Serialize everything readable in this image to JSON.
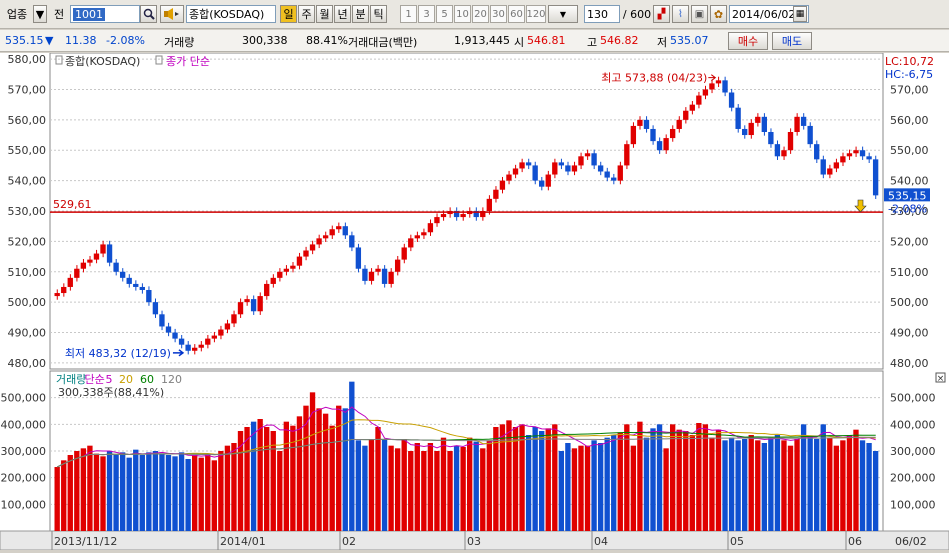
{
  "toolbar": {
    "market_label": "업종",
    "market_dropdown_icon": "chevron-down-icon",
    "prev_label": "전",
    "code_value": "1001",
    "search_icon": "search-icon",
    "speaker_icon": "speaker-icon",
    "index_name": "종합(KOSDAQ)",
    "periods": [
      "일",
      "주",
      "월",
      "년",
      "분",
      "틱"
    ],
    "minutes": [
      "1",
      "3",
      "5",
      "10",
      "20",
      "30",
      "60",
      "120"
    ],
    "count_value": "130",
    "count_total": "/ 600",
    "date_value": "2014/06/02"
  },
  "quote": {
    "price": "535.15",
    "arrow": "▼",
    "change": "11.38",
    "change_pct": "-2.08%",
    "volume_label": "거래량",
    "volume_value": "300,338",
    "volume_pct": "88.41%",
    "amount_label": "거래대금(백만)",
    "amount_value": "1,913,445",
    "open_label": "시",
    "open_value": "546.81",
    "high_label": "고",
    "high_value": "546.82",
    "low_label": "저",
    "low_value": "535.07",
    "buy_label": "매수",
    "sell_label": "매도"
  },
  "chart_data": [
    {
      "type": "candlestick",
      "legend": [
        "종합(KOSDAQ)",
        "종가 단순"
      ],
      "yticks": [
        "580,00",
        "570,00",
        "560,00",
        "550,00",
        "540,00",
        "530,00",
        "520,00",
        "510,00",
        "500,00",
        "490,00",
        "480,00"
      ],
      "yticks_right": [
        "570,00",
        "560,00",
        "550,00",
        "540,00",
        "530,00",
        "520,00",
        "510,00",
        "500,00",
        "490,00",
        "480,00"
      ],
      "ylim": [
        478,
        582
      ],
      "lc_label": "LC:10,72",
      "hc_label": "HC:-6,75",
      "hline_value": 529.61,
      "hline_label": "529,61",
      "last_price": "535,15",
      "last_pct": "-2,08%",
      "high_annotation": "최고 573,88 (04/23)",
      "low_annotation": "최저 483,32 (12/19)",
      "close": [
        503,
        505,
        508,
        511,
        513,
        514,
        516,
        519,
        513,
        510,
        508,
        506,
        505,
        504,
        500,
        496,
        492,
        490,
        488,
        486,
        484,
        485,
        486,
        488,
        489,
        491,
        493,
        496,
        500,
        501,
        497,
        502,
        506,
        508,
        510,
        511,
        512,
        515,
        517,
        519,
        521,
        522,
        524,
        525,
        522,
        518,
        511,
        507,
        510,
        511,
        506,
        510,
        514,
        518,
        521,
        522,
        523,
        526,
        528,
        529,
        530,
        528,
        529,
        530,
        528,
        530,
        534,
        537,
        540,
        542,
        544,
        546,
        545,
        540,
        538,
        542,
        546,
        545,
        543,
        545,
        548,
        549,
        545,
        543,
        541,
        540,
        545,
        552,
        558,
        560,
        557,
        553,
        550,
        554,
        557,
        560,
        563,
        565,
        568,
        570,
        572,
        573,
        569,
        564,
        557,
        555,
        559,
        561,
        556,
        552,
        548,
        550,
        556,
        561,
        558,
        552,
        547,
        542,
        544,
        546,
        548,
        549,
        550,
        548,
        547,
        535.15
      ]
    },
    {
      "type": "bar",
      "legend": [
        "거래량",
        "단순",
        "5",
        "20",
        "60",
        "120"
      ],
      "legend_colors": [
        "#008080",
        "#c000c0",
        "#c000c0",
        "#c8a000",
        "#008000",
        "#808080"
      ],
      "volume_label": "300,338주(88,41%)",
      "yticks": [
        "500,000",
        "400,000",
        "300,000",
        "200,000",
        "100,000"
      ],
      "ylim": [
        0,
        600000
      ],
      "xticks": [
        "2013/11/12",
        "2014/01",
        "02",
        "03",
        "04",
        "05",
        "06"
      ],
      "x_right_label": "06/02",
      "values": [
        240,
        265,
        285,
        300,
        310,
        320,
        290,
        280,
        300,
        285,
        295,
        275,
        305,
        285,
        295,
        300,
        290,
        285,
        280,
        295,
        270,
        285,
        275,
        290,
        265,
        300,
        320,
        330,
        375,
        390,
        410,
        420,
        390,
        375,
        300,
        410,
        395,
        430,
        470,
        520,
        460,
        440,
        395,
        470,
        460,
        560,
        340,
        320,
        345,
        390,
        345,
        320,
        310,
        345,
        300,
        330,
        300,
        330,
        300,
        350,
        300,
        320,
        315,
        350,
        335,
        310,
        340,
        390,
        400,
        415,
        390,
        400,
        360,
        390,
        375,
        385,
        400,
        300,
        330,
        310,
        320,
        320,
        340,
        330,
        350,
        360,
        370,
        400,
        320,
        410,
        350,
        385,
        400,
        310,
        400,
        380,
        375,
        360,
        405,
        400,
        350,
        380,
        340,
        350,
        340,
        345,
        360,
        340,
        330,
        350,
        360,
        340,
        320,
        345,
        400,
        355,
        345,
        400,
        350,
        320,
        340,
        360,
        380,
        340,
        330,
        300
      ]
    }
  ]
}
